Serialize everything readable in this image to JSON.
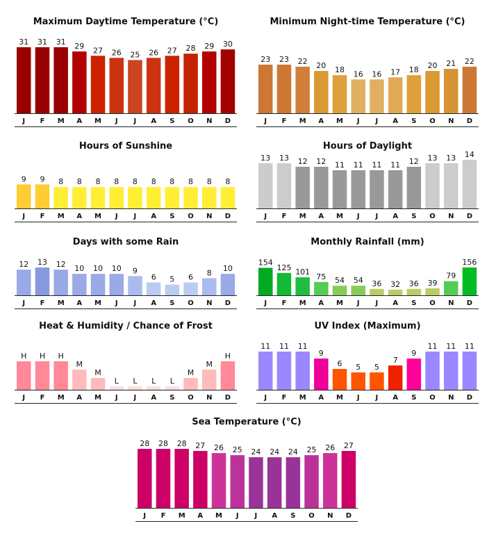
{
  "chart_data": [
    {
      "type": "bar",
      "title": "Maximum Daytime Temperature (°C)",
      "categories": [
        "J",
        "F",
        "M",
        "A",
        "M",
        "J",
        "J",
        "A",
        "S",
        "O",
        "N",
        "D"
      ],
      "values": [
        31,
        31,
        31,
        29,
        27,
        26,
        25,
        26,
        27,
        28,
        29,
        30
      ],
      "labels": [
        "31",
        "31",
        "31",
        "29",
        "27",
        "26",
        "25",
        "26",
        "27",
        "28",
        "29",
        "30"
      ],
      "colors": [
        "#990000",
        "#990000",
        "#990000",
        "#b30000",
        "#cc2200",
        "#cc3311",
        "#cc4422",
        "#cc3311",
        "#cc2200",
        "#c42200",
        "#b30000",
        "#a30000"
      ],
      "ylim": [
        0,
        31
      ]
    },
    {
      "type": "bar",
      "title": "Minimum Night-time Temperature (°C)",
      "categories": [
        "J",
        "F",
        "M",
        "A",
        "M",
        "J",
        "J",
        "A",
        "S",
        "O",
        "N",
        "D"
      ],
      "values": [
        23,
        23,
        22,
        20,
        18,
        16,
        16,
        17,
        18,
        20,
        21,
        22
      ],
      "labels": [
        "23",
        "23",
        "22",
        "20",
        "18",
        "16",
        "16",
        "17",
        "18",
        "20",
        "21",
        "22"
      ],
      "colors": [
        "#cc7733",
        "#cc7733",
        "#d0803a",
        "#d99933",
        "#dda03a",
        "#e0b060",
        "#e0b060",
        "#e0aa55",
        "#dda03a",
        "#d99933",
        "#d69333",
        "#cc7733"
      ],
      "ylim": [
        0,
        23
      ]
    },
    {
      "type": "bar",
      "title": "Hours of Sunshine",
      "categories": [
        "J",
        "F",
        "M",
        "A",
        "M",
        "J",
        "J",
        "A",
        "S",
        "O",
        "N",
        "D"
      ],
      "values": [
        9,
        9,
        8,
        8,
        8,
        8,
        8,
        8,
        8,
        8,
        8,
        8
      ],
      "labels": [
        "9",
        "9",
        "8",
        "8",
        "8",
        "8",
        "8",
        "8",
        "8",
        "8",
        "8",
        "8"
      ],
      "colors": [
        "#ffcc33",
        "#ffcc33",
        "#ffee33",
        "#ffee33",
        "#ffee33",
        "#ffee33",
        "#ffee33",
        "#ffee33",
        "#ffee33",
        "#ffee33",
        "#ffee33",
        "#ffee33"
      ],
      "ylim": [
        0,
        26
      ]
    },
    {
      "type": "bar",
      "title": "Hours of Daylight",
      "categories": [
        "J",
        "F",
        "M",
        "A",
        "M",
        "J",
        "J",
        "A",
        "S",
        "O",
        "N",
        "D"
      ],
      "values": [
        13,
        13,
        12,
        12,
        11,
        11,
        11,
        11,
        12,
        13,
        13,
        14
      ],
      "labels": [
        "13",
        "13",
        "12",
        "12",
        "11",
        "11",
        "11",
        "11",
        "12",
        "13",
        "13",
        "14"
      ],
      "colors": [
        "#cccccc",
        "#cccccc",
        "#999999",
        "#999999",
        "#999999",
        "#999999",
        "#999999",
        "#999999",
        "#999999",
        "#cccccc",
        "#cccccc",
        "#cccccc"
      ],
      "ylim": [
        0,
        14
      ]
    },
    {
      "type": "bar",
      "title": "Days with some Rain",
      "categories": [
        "J",
        "F",
        "M",
        "A",
        "M",
        "J",
        "J",
        "A",
        "S",
        "O",
        "N",
        "D"
      ],
      "values": [
        12,
        13,
        12,
        10,
        10,
        10,
        9,
        6,
        5,
        6,
        8,
        10
      ],
      "labels": [
        "12",
        "13",
        "12",
        "10",
        "10",
        "10",
        "9",
        "6",
        "5",
        "6",
        "8",
        "10"
      ],
      "colors": [
        "#99aae6",
        "#8899dd",
        "#99aae6",
        "#99aae6",
        "#99aae6",
        "#99aae6",
        "#aabbee",
        "#bbccf2",
        "#bbccf2",
        "#bbccf2",
        "#aabbee",
        "#99aae6"
      ],
      "ylim": [
        0,
        13
      ]
    },
    {
      "type": "bar",
      "title": "Monthly Rainfall (mm)",
      "categories": [
        "J",
        "F",
        "M",
        "A",
        "M",
        "J",
        "J",
        "A",
        "S",
        "O",
        "N",
        "D"
      ],
      "values": [
        154,
        125,
        101,
        75,
        54,
        54,
        36,
        32,
        36,
        39,
        79,
        156
      ],
      "labels": [
        "154",
        "125",
        "101",
        "75",
        "54",
        "54",
        "36",
        "32",
        "36",
        "39",
        "79",
        "156"
      ],
      "colors": [
        "#00aa22",
        "#11bb33",
        "#22bb44",
        "#55cc55",
        "#88cc55",
        "#88cc55",
        "#bbcc66",
        "#bbcc66",
        "#bbcc66",
        "#bbcc66",
        "#55cc55",
        "#00bb22"
      ],
      "ylim": [
        0,
        156
      ]
    },
    {
      "type": "bar",
      "title": "Heat & Humidity / Chance of Frost",
      "categories": [
        "J",
        "F",
        "M",
        "A",
        "M",
        "J",
        "J",
        "A",
        "S",
        "O",
        "N",
        "D"
      ],
      "values": [
        3,
        3,
        3,
        2,
        1,
        0,
        0,
        0,
        0,
        1,
        2,
        3
      ],
      "labels": [
        "H",
        "H",
        "H",
        "M",
        "M",
        "L",
        "L",
        "L",
        "L",
        "M",
        "M",
        "H"
      ],
      "colors": [
        "#ff8899",
        "#ff8899",
        "#ff8899",
        "#ffbbbb",
        "#ffbbbb",
        "#ffdddd",
        "#ffdddd",
        "#ffdddd",
        "#ffdddd",
        "#ffbbbb",
        "#ffbbbb",
        "#ff8899"
      ],
      "ylim": [
        0,
        3
      ]
    },
    {
      "type": "bar",
      "title": "UV Index (Maximum)",
      "categories": [
        "J",
        "F",
        "M",
        "A",
        "M",
        "J",
        "J",
        "A",
        "S",
        "O",
        "N",
        "D"
      ],
      "values": [
        11,
        11,
        11,
        9,
        6,
        5,
        5,
        7,
        9,
        11,
        11,
        11
      ],
      "labels": [
        "11",
        "11",
        "11",
        "9",
        "6",
        "5",
        "5",
        "7",
        "9",
        "11",
        "11",
        "11"
      ],
      "colors": [
        "#9988ff",
        "#9988ff",
        "#9988ff",
        "#ee0099",
        "#ff5500",
        "#ff5500",
        "#ff5500",
        "#ee2200",
        "#ff0099",
        "#9988ff",
        "#9988ff",
        "#9988ff"
      ],
      "ylim": [
        0,
        11
      ]
    },
    {
      "type": "bar",
      "title": "Sea Temperature (°C)",
      "categories": [
        "J",
        "F",
        "M",
        "A",
        "M",
        "J",
        "J",
        "A",
        "S",
        "O",
        "N",
        "D"
      ],
      "values": [
        28,
        28,
        28,
        27,
        26,
        25,
        24,
        24,
        24,
        25,
        26,
        27
      ],
      "labels": [
        "28",
        "28",
        "28",
        "27",
        "26",
        "25",
        "24",
        "24",
        "24",
        "25",
        "26",
        "27"
      ],
      "colors": [
        "#cc0066",
        "#cc0066",
        "#cc0066",
        "#cc0066",
        "#cc3399",
        "#bb3399",
        "#993399",
        "#993399",
        "#993399",
        "#bb3399",
        "#cc3399",
        "#cc0066"
      ],
      "ylim": [
        0,
        28
      ]
    }
  ]
}
